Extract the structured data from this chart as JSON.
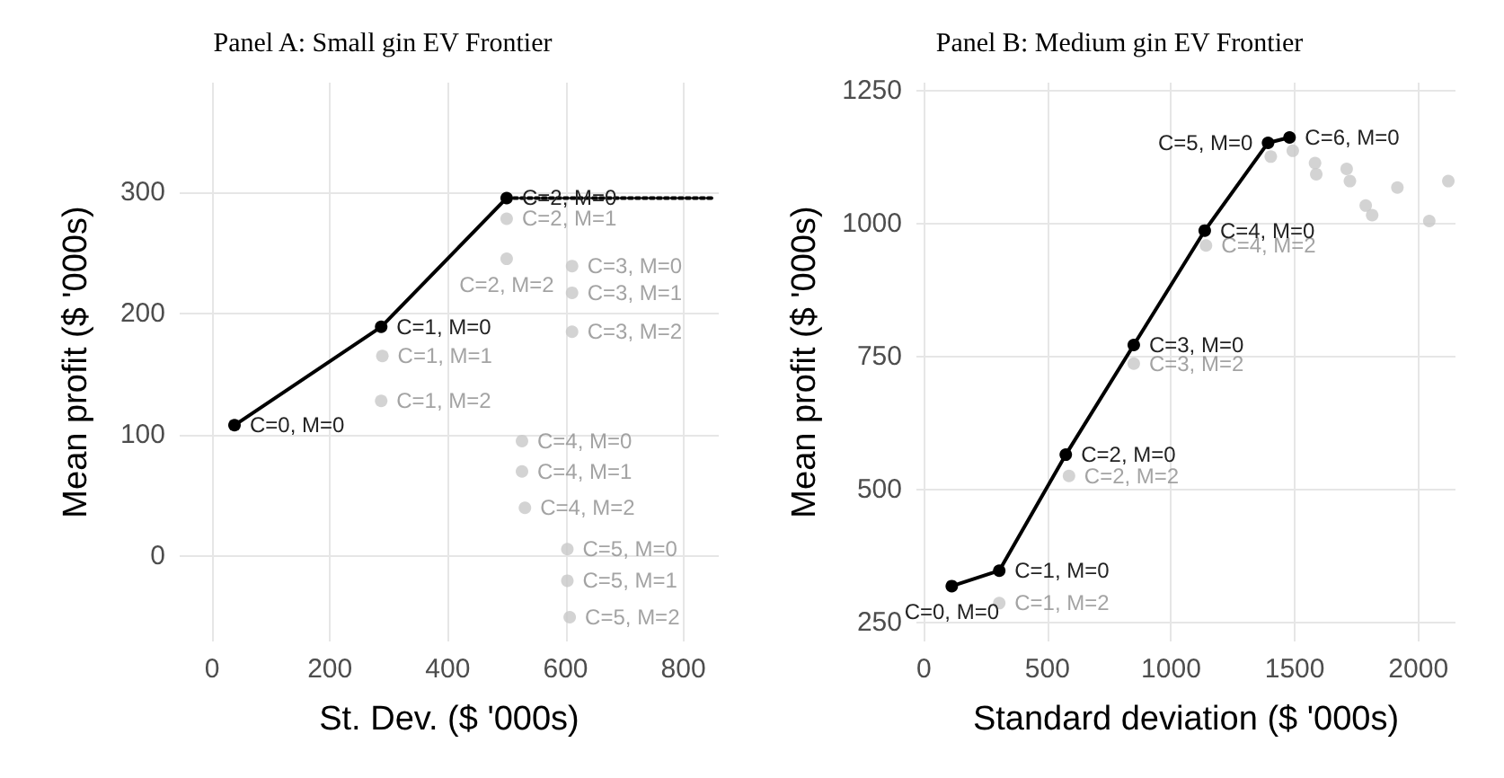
{
  "chart_data": [
    {
      "type": "scatter",
      "title": "Panel A: Small gin EV Frontier",
      "xlabel": "St. Dev. ($ '000s)",
      "ylabel": "Mean profit ($ '000s)",
      "xlim": [
        -55,
        860
      ],
      "ylim": [
        -70,
        390
      ],
      "xticks": [
        0,
        200,
        400,
        600,
        800
      ],
      "yticks": [
        0,
        100,
        200,
        300
      ],
      "grid": true,
      "series": [
        {
          "color": "#c8c8c8",
          "marker": "circle",
          "x": [
            500,
            500,
            611,
            611,
            611,
            289,
            287,
            526,
            526,
            531,
            603,
            603,
            607
          ],
          "values": [
            278,
            245,
            239,
            217,
            185,
            165,
            128,
            95,
            70,
            40,
            6,
            -20,
            -50
          ],
          "value_labels": [
            "C=2, M=1",
            "C=2, M=2",
            "C=3, M=0",
            "C=3, M=1",
            "C=3, M=2",
            "C=1, M=1",
            "C=1, M=2",
            "C=4, M=0",
            "C=4, M=1",
            "C=4, M=2",
            "C=5, M=0",
            "C=5, M=1",
            "C=5, M=2"
          ]
        },
        {
          "type": "line",
          "color": "#000000",
          "line_style": "dotted",
          "x": [
            500,
            850
          ],
          "values": [
            295,
            295
          ]
        },
        {
          "type": "line",
          "color": "#000000",
          "line_style": "solid",
          "marker": "circle",
          "x": [
            38,
            287,
            500
          ],
          "values": [
            108,
            189,
            295
          ],
          "value_labels": [
            "C=0, M=0",
            "C=1, M=0",
            "C=2, M=0"
          ]
        }
      ]
    },
    {
      "type": "scatter",
      "title": "Panel B: Medium gin EV Frontier",
      "xlabel": "Standard deviation ($ '000s)",
      "ylabel": "Mean profit ($ '000s)",
      "xlim": [
        -30,
        2150
      ],
      "ylim": [
        215,
        1265
      ],
      "xticks": [
        0,
        500,
        1000,
        1500,
        2000
      ],
      "yticks": [
        250,
        500,
        750,
        1000,
        1250
      ],
      "grid": true,
      "marker": "circle",
      "series": [
        {
          "color": "#c8c8c8",
          "x": [
            305,
            587,
            849,
            1141,
            1403,
            1492,
            1582,
            1587,
            1710,
            1723,
            1787,
            1813,
            1915,
            2044,
            2121
          ],
          "values": [
            287,
            526,
            737,
            959,
            1126,
            1137,
            1114,
            1093,
            1103,
            1080,
            1034,
            1016,
            1068,
            1005,
            1080
          ],
          "value_labels": [
            "C=1, M=2",
            "C=2, M=2",
            "C=3, M=2",
            "C=4, M=2",
            null,
            null,
            null,
            null,
            null,
            null,
            null,
            null,
            null,
            null,
            null
          ]
        },
        {
          "type": "line",
          "color": "#000000",
          "line_style": "solid",
          "x": [
            113,
            305,
            574,
            849,
            1136,
            1392,
            1479
          ],
          "values": [
            319,
            348,
            566,
            772,
            987,
            1152,
            1162
          ],
          "value_labels": [
            "C=0, M=0",
            "C=1, M=0",
            "C=2, M=0",
            "C=3, M=0",
            "C=4, M=0",
            "C=5, M=0",
            "C=6, M=0"
          ]
        }
      ]
    }
  ]
}
